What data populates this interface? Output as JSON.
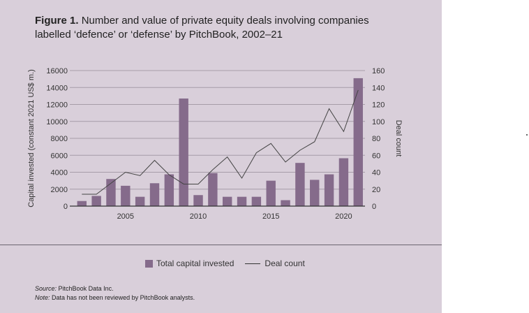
{
  "figure_label": "Figure 1.",
  "title_text": "Number and value of private equity deals involving companies labelled ‘defence’ or ‘defense’ by PitchBook, 2002–21",
  "source_label": "Source:",
  "source_text": "PitchBook Data Inc.",
  "note_label": "Note:",
  "note_text": "Data has not been reviewed by PitchBook analysts.",
  "colors": {
    "bar": "#856b8b",
    "line": "#444444",
    "background": "#d9cfda"
  },
  "chart_data": {
    "type": "bar",
    "title": "Number and value of private equity deals involving companies labelled ‘defence’ or ‘defense’ by PitchBook, 2002–21",
    "x": [
      2002,
      2003,
      2004,
      2005,
      2006,
      2007,
      2008,
      2009,
      2010,
      2011,
      2012,
      2013,
      2014,
      2015,
      2016,
      2017,
      2018,
      2019,
      2020,
      2021
    ],
    "xticks": [
      "2005",
      "2010",
      "2015",
      "2020"
    ],
    "ylabel": "Capital invested (constant 2021 US$ m.)",
    "y2label": "Deal count",
    "ylim": [
      0,
      16000
    ],
    "y2lim": [
      0,
      160
    ],
    "yticks": [
      "0",
      "2000",
      "4000",
      "6000",
      "8000",
      "10000",
      "12000",
      "14000",
      "16000"
    ],
    "y2ticks": [
      "0",
      "20",
      "40",
      "60",
      "80",
      "100",
      "120",
      "140",
      "160"
    ],
    "grid": true,
    "legend_position": "bottom-center",
    "series": [
      {
        "name": "Total capital invested",
        "type": "bar",
        "values": [
          600,
          1200,
          3200,
          2400,
          1100,
          2700,
          3750,
          12700,
          1300,
          3900,
          1100,
          1100,
          1100,
          3000,
          700,
          5100,
          3100,
          3750,
          5650,
          15100
        ]
      },
      {
        "name": "Deal count",
        "type": "line",
        "axis": "right",
        "values": [
          14,
          14,
          27,
          40,
          36,
          54,
          37,
          26,
          26,
          43,
          58,
          33,
          63,
          74,
          52,
          66,
          76,
          115,
          88,
          137
        ]
      }
    ]
  }
}
